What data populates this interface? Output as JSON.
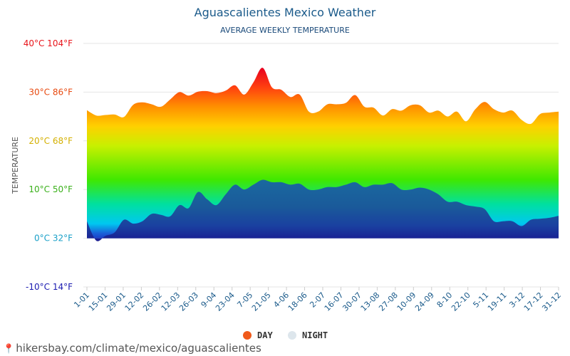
{
  "chart_data": {
    "type": "area",
    "title": "Aguascalientes Mexico Weather",
    "subtitle": "AVERAGE WEEKLY TEMPERATURE",
    "ylabel": "TEMPERATURE",
    "ylim": [
      -10,
      40
    ],
    "y_ticks": [
      {
        "value": 40,
        "label": "40°C 104°F",
        "color": "#e8141a"
      },
      {
        "value": 30,
        "label": "30°C 86°F",
        "color": "#e84a10"
      },
      {
        "value": 20,
        "label": "20°C 68°F",
        "color": "#d4b000"
      },
      {
        "value": 10,
        "label": "10°C 50°F",
        "color": "#3ab01a"
      },
      {
        "value": 0,
        "label": "0°C 32°F",
        "color": "#1aa0c8"
      },
      {
        "value": -10,
        "label": "-10°C 14°F",
        "color": "#1a1ab0"
      }
    ],
    "x_labels": [
      "1-01",
      "15-01",
      "29-01",
      "12-02",
      "26-02",
      "12-03",
      "26-03",
      "9-04",
      "23-04",
      "7-05",
      "21-05",
      "4-06",
      "18-06",
      "2-07",
      "16-07",
      "30-07",
      "13-08",
      "27-08",
      "10-09",
      "24-09",
      "8-10",
      "22-10",
      "5-11",
      "19-11",
      "3-12",
      "17-12",
      "31-12"
    ],
    "grid": true,
    "legend_position": "bottom",
    "series": [
      {
        "name": "DAY",
        "color": "#f05a1a",
        "values": [
          26.3,
          25.2,
          25.3,
          25.4,
          24.9,
          27.4,
          27.9,
          27.5,
          27.0,
          28.5,
          30.0,
          29.3,
          30.1,
          30.2,
          29.8,
          30.3,
          31.4,
          29.5,
          32.0,
          35.0,
          31.0,
          30.5,
          29.0,
          29.5,
          26.0,
          26.0,
          27.5,
          27.5,
          27.8,
          29.4,
          27.0,
          26.8,
          25.2,
          26.5,
          26.2,
          27.3,
          27.3,
          25.8,
          26.2,
          25.0,
          26.0,
          24.0,
          26.5,
          28.0,
          26.5,
          25.8,
          26.2,
          24.3,
          23.5,
          25.5,
          25.8,
          26.0
        ]
      },
      {
        "name": "NIGHT",
        "color": "#dde6ec",
        "values": [
          3.5,
          -0.5,
          0.5,
          1.2,
          3.8,
          3.0,
          3.5,
          5.0,
          4.8,
          4.5,
          6.8,
          6.2,
          9.5,
          8.0,
          6.8,
          9.0,
          11.0,
          10.0,
          11.0,
          12.0,
          11.5,
          11.5,
          11.0,
          11.2,
          10.0,
          10.0,
          10.5,
          10.5,
          11.0,
          11.5,
          10.5,
          11.0,
          11.0,
          11.3,
          10.0,
          10.0,
          10.4,
          10.0,
          9.0,
          7.5,
          7.5,
          6.8,
          6.5,
          6.0,
          3.5,
          3.5,
          3.5,
          2.5,
          3.8,
          4.0,
          4.2,
          4.6
        ]
      }
    ]
  },
  "source_text": "hikersbay.com/climate/mexico/aguascalientes",
  "icons": {
    "pin": "location-pin-icon"
  }
}
